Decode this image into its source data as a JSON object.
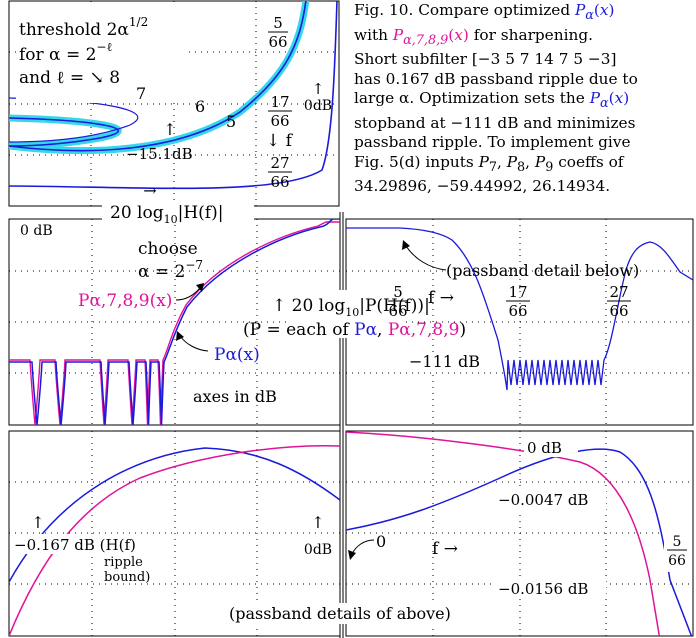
{
  "caption": {
    "lines": [
      "Fig. 10. Compare optimized Pα(x)",
      "with Pα,7,8,9(x) for sharpening.",
      "Short subfilter [−3 5 7 14 7 5 −3]",
      "has 0.167 dB passband ripple due to",
      "large α. Optimization sets the Pα(x)",
      "stopband at −111 dB and minimizes",
      "passband ripple. To implement give",
      "Fig. 5(d) inputs P7, P8, P9 coeffs of",
      "34.29896, −59.44992, 26.14934."
    ]
  },
  "colors": {
    "p_alpha": "#1a1adc",
    "p_alpha789": "#e0129a",
    "threshold": "#35d8ea",
    "grid": "#000000"
  },
  "chart_data": [
    {
      "type": "line",
      "panel": "top-left",
      "xlabel": "20 log10|H(f)|",
      "annotations": [
        "threshold 2α^1/2",
        "for α = 2^−ℓ",
        "and ℓ = ↘ 8",
        "7",
        "6",
        "5",
        "5/66",
        "17/66",
        "27/66",
        "↓ f",
        "0dB",
        "−15.1dB",
        "↑",
        "→"
      ],
      "series": [
        {
          "name": "Pα(x)",
          "color": "#1a1adc"
        },
        {
          "name": "threshold",
          "color": "#35d8ea"
        }
      ]
    },
    {
      "type": "line",
      "panel": "middle-left",
      "annotations": [
        "0 dB",
        "choose",
        "α = 2^−7",
        "Pα,7,8,9(x)",
        "Pα(x)",
        "axes in dB"
      ],
      "series": [
        {
          "name": "Pα(x)",
          "color": "#1a1adc"
        },
        {
          "name": "Pα,7,8,9(x)",
          "color": "#e0129a"
        }
      ]
    },
    {
      "type": "line",
      "panel": "middle-right",
      "xlabel": "f →",
      "annotations": [
        "(passband detail below)",
        "5/66",
        "17/66",
        "27/66",
        "−111 dB",
        "↑ 20 log10|P(H(f))|",
        "(P = each of Pα, Pα,7,8,9)"
      ],
      "series": [
        {
          "name": "Pα(x)",
          "color": "#1a1adc"
        }
      ]
    },
    {
      "type": "line",
      "panel": "bottom-left",
      "annotations": [
        "−0.167 dB (H(f)",
        "ripple",
        "bound)",
        "0dB",
        "↑",
        "↑"
      ],
      "series": [
        {
          "name": "Pα(x)",
          "color": "#1a1adc"
        },
        {
          "name": "Pα,7,8,9(x)",
          "color": "#e0129a"
        }
      ]
    },
    {
      "type": "line",
      "panel": "bottom-right",
      "xlabel": "f →",
      "yticks": [
        "0 dB",
        "−0.0047 dB",
        "−0.0156 dB"
      ],
      "annotations": [
        "0",
        "5/66",
        "(passband details of above)"
      ],
      "series": [
        {
          "name": "Pα(x)",
          "color": "#1a1adc"
        },
        {
          "name": "Pα,7,8,9(x)",
          "color": "#e0129a"
        }
      ]
    }
  ],
  "text": {
    "tl_thresh": "threshold 2α",
    "tl_thresh_sup": "1/2",
    "tl_for": "for α = 2",
    "tl_for_sup": "−ℓ",
    "tl_and": "and ℓ = ↘ 8",
    "tl_7": "7",
    "tl_6": "6",
    "tl_5": "5",
    "tl_5_66_n": "5",
    "tl_5_66_d": "66",
    "tl_17_66_n": "17",
    "tl_17_66_d": "66",
    "tl_27_66_n": "27",
    "tl_27_66_d": "66",
    "tl_f": "↓ f",
    "tl_0db": "0dB",
    "tl_15db": "−15.1dB",
    "tl_up": "↑",
    "tl_right": "→",
    "tl_xlabel": "20 log",
    "tl_xlabel_sub": "10",
    "tl_xlabel_rest": "|H(f)|",
    "ml_0db": "0 dB",
    "ml_choose": "choose",
    "ml_alpha": "α = 2",
    "ml_alpha_sup": "−7",
    "ml_p789": "Pα,7,8,9(x)",
    "ml_pa": "Pα(x)",
    "ml_axes": "axes in dB",
    "mid_formula": "↑ 20 log",
    "mid_formula_sub": "10",
    "mid_formula_rest": "|P(H(f))|",
    "mid_each_a": "(P = each of ",
    "mid_each_pa": "Pα",
    "mid_each_comma": ", ",
    "mid_each_p789": "Pα,7,8,9",
    "mid_each_close": ")",
    "mr_detail": "(passband detail below)",
    "mr_5_n": "5",
    "mr_5_d": "66",
    "mr_f": "f →",
    "mr_17_n": "17",
    "mr_17_d": "66",
    "mr_27_n": "27",
    "mr_27_d": "66",
    "mr_111": "−111 dB",
    "bl_ripple1": "−0.167 dB (H(f)",
    "bl_ripple2": "ripple",
    "bl_ripple3": "bound)",
    "bl_0db": "0dB",
    "bl_up": "↑",
    "br_0db": "0 dB",
    "br_0047": "−0.0047 dB",
    "br_0": "0",
    "br_f": "f →",
    "br_5_n": "5",
    "br_5_d": "66",
    "br_0156": "−0.0156 dB",
    "br_details": "(passband details of above)"
  }
}
